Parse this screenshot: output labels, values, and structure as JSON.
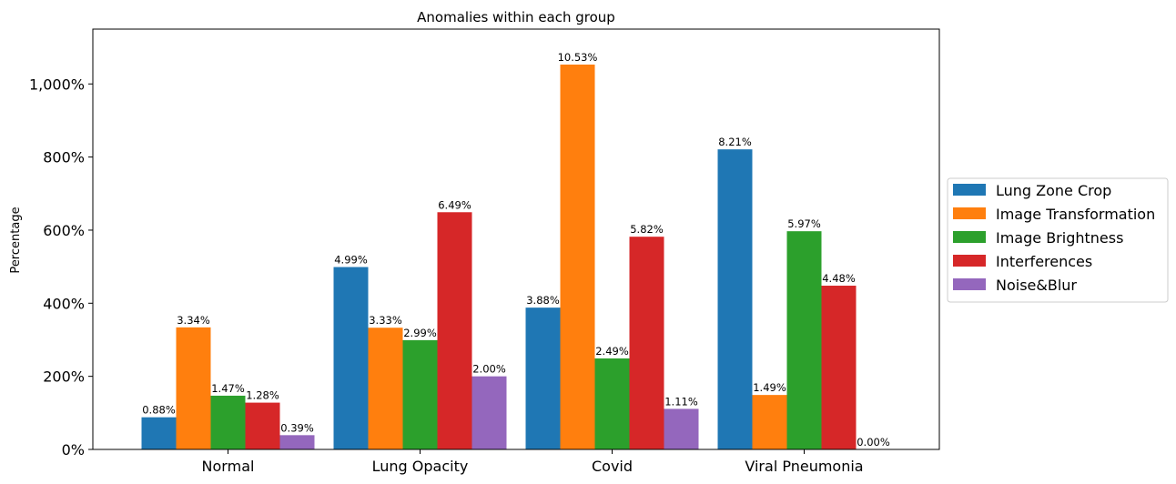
{
  "colors": {
    "lung_zone_crop": "#1f77b4",
    "image_transformation": "#ff7f0e",
    "image_brightness": "#2ca02c",
    "interferences": "#d62728",
    "noise_blur": "#9467bd"
  },
  "chart_data": {
    "type": "bar",
    "title": "Anomalies within each group",
    "xlabel": "",
    "ylabel": "Percentage",
    "ylim": [
      0,
      1150
    ],
    "yticks": [
      0,
      200,
      400,
      600,
      800,
      1000
    ],
    "ytick_labels": [
      "0%",
      "200%",
      "400%",
      "600%",
      "800%",
      "1,000%"
    ],
    "categories": [
      "Normal",
      "Lung Opacity",
      "Covid",
      "Viral Pneumonia"
    ],
    "legend_position": "center-right, outside plot",
    "grid": false,
    "series": [
      {
        "name": "Lung Zone Crop",
        "color_key": "lung_zone_crop",
        "values": [
          88,
          499,
          388,
          821
        ],
        "labels": [
          "0.88%",
          "4.99%",
          "3.88%",
          "8.21%"
        ]
      },
      {
        "name": "Image Transformation",
        "color_key": "image_transformation",
        "values": [
          334,
          333,
          1053,
          149
        ],
        "labels": [
          "3.34%",
          "3.33%",
          "10.53%",
          "1.49%"
        ]
      },
      {
        "name": "Image Brightness",
        "color_key": "image_brightness",
        "values": [
          147,
          299,
          249,
          597
        ],
        "labels": [
          "1.47%",
          "2.99%",
          "2.49%",
          "5.97%"
        ]
      },
      {
        "name": "Interferences",
        "color_key": "interferences",
        "values": [
          128,
          649,
          582,
          448
        ],
        "labels": [
          "1.28%",
          "6.49%",
          "5.82%",
          "4.48%"
        ]
      },
      {
        "name": "Noise&Blur",
        "color_key": "noise_blur",
        "values": [
          39,
          200,
          111,
          0
        ],
        "labels": [
          "0.39%",
          "2.00%",
          "1.11%",
          "0.00%"
        ]
      }
    ]
  }
}
